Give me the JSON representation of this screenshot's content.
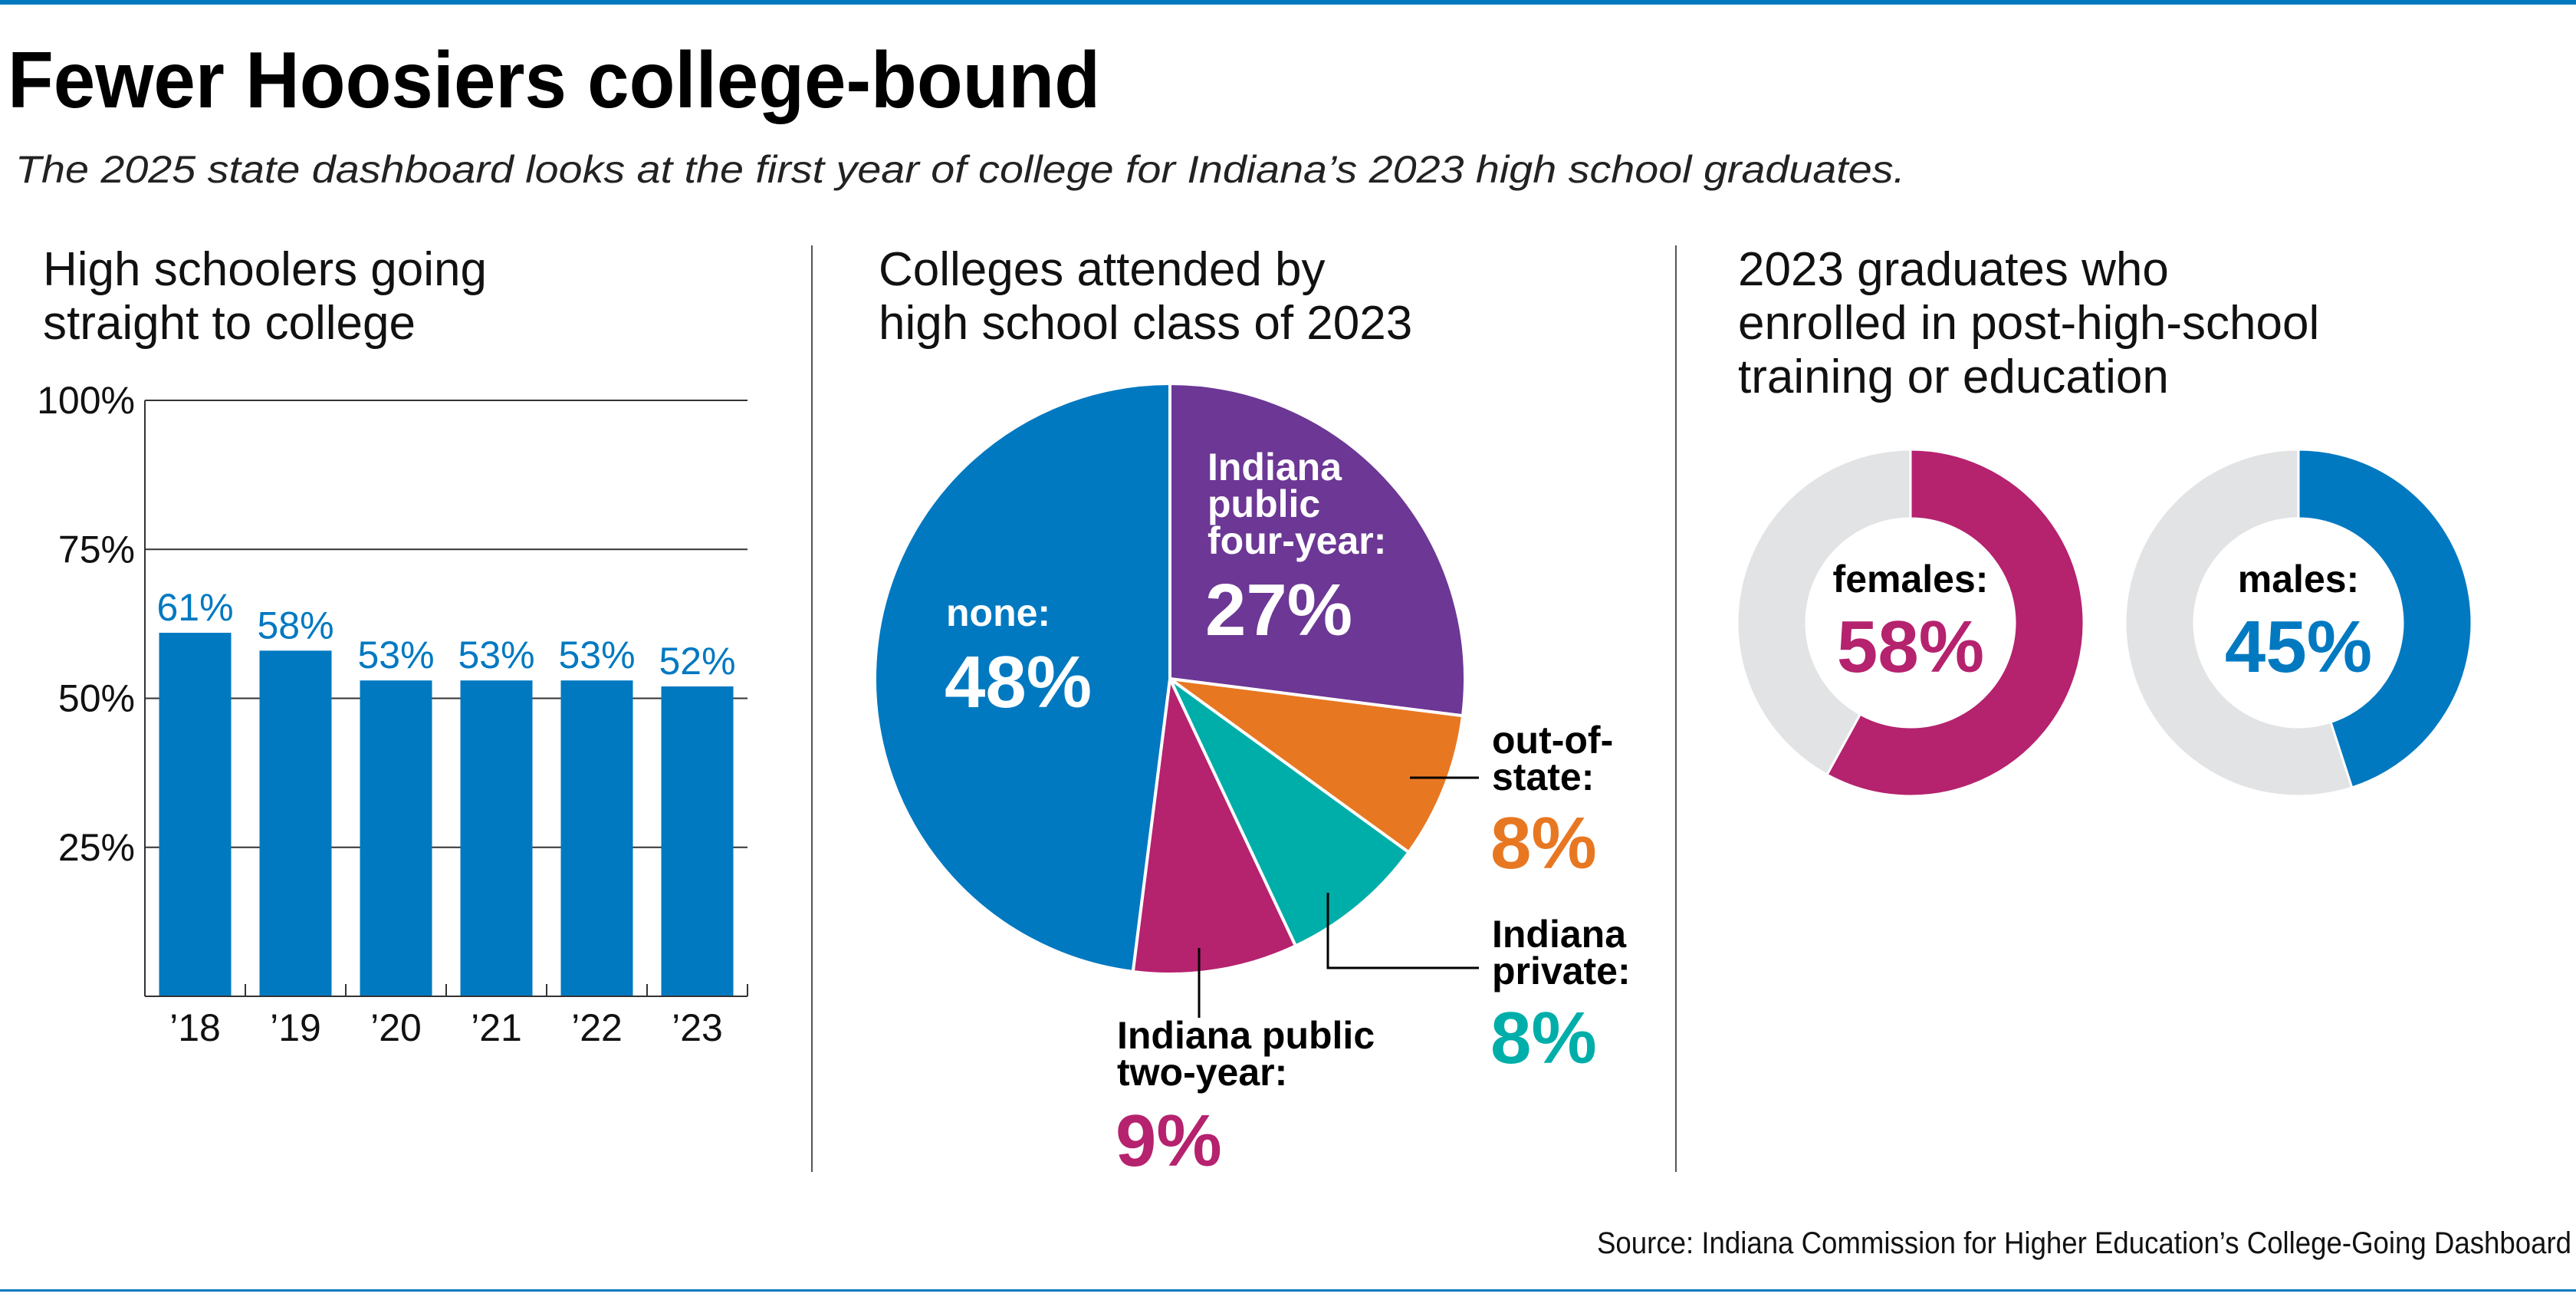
{
  "header": {
    "title": "Fewer Hoosiers college-bound",
    "subtitle": "The 2025 state dashboard looks at the first year of college for Indiana’s 2023 high school graduates."
  },
  "colors": {
    "blue": "#0079c1",
    "purple": "#6c3795",
    "orange": "#e87722",
    "teal": "#00aea9",
    "magenta": "#b5226e",
    "grey": "#e2e3e4",
    "rule": "#0079c1"
  },
  "source": "Source: Indiana Commission for Higher Education’s College-Going Dashboard",
  "chart_data": [
    {
      "type": "bar",
      "title_lines": [
        "High schoolers going",
        "straight to college"
      ],
      "categories": [
        "’18",
        "’19",
        "’20",
        "’21",
        "’22",
        "’23"
      ],
      "values": [
        61,
        58,
        53,
        53,
        53,
        52
      ],
      "value_labels": [
        "61%",
        "58%",
        "53%",
        "53%",
        "53%",
        "52%"
      ],
      "yticks": [
        25,
        50,
        75,
        100
      ],
      "ytick_labels": [
        "25%",
        "50%",
        "75%",
        "100%"
      ],
      "ylim": [
        0,
        100
      ],
      "grid": true,
      "color": "#0079c1"
    },
    {
      "type": "pie",
      "title_lines": [
        "Colleges attended by",
        "high school class of 2023"
      ],
      "slices": [
        {
          "label_lines": [
            "Indiana",
            "public",
            "four-year:"
          ],
          "value": 27,
          "pct": "27%",
          "color": "#6c3795"
        },
        {
          "label_lines": [
            "out-of-",
            "state:"
          ],
          "value": 8,
          "pct": "8%",
          "color": "#e87722"
        },
        {
          "label_lines": [
            "Indiana",
            "private:"
          ],
          "value": 8,
          "pct": "8%",
          "color": "#00aea9"
        },
        {
          "label_lines": [
            "Indiana public",
            "two-year:"
          ],
          "value": 9,
          "pct": "9%",
          "color": "#b5226e"
        },
        {
          "label_lines": [
            "none:"
          ],
          "value": 48,
          "pct": "48%",
          "color": "#0079c1"
        }
      ]
    },
    {
      "type": "pie",
      "subtype": "donut",
      "title_lines": [
        "2023 graduates who",
        "enrolled in post-high-school",
        "training or education"
      ],
      "donuts": [
        {
          "label": "females:",
          "value": 58,
          "pct": "58%",
          "color": "#b5226e"
        },
        {
          "label": "males:",
          "value": 45,
          "pct": "45%",
          "color": "#0079c1"
        }
      ]
    }
  ]
}
